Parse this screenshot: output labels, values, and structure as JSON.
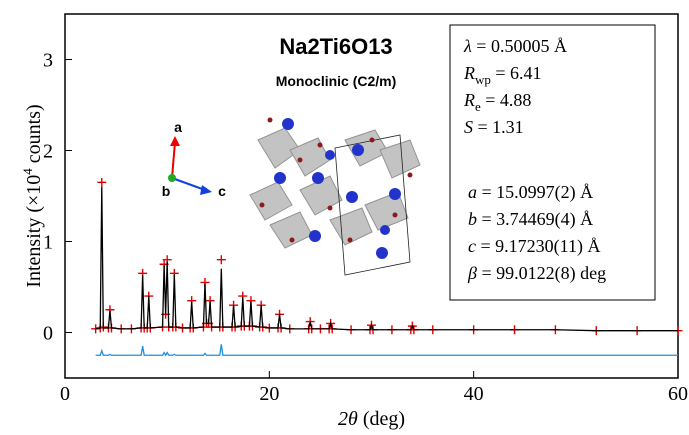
{
  "chart_data": {
    "type": "rietveld",
    "title": "Na2Ti6O13",
    "subtitle": "Monoclinic (C2/m)",
    "x_label": {
      "symbol": "2θ",
      "text": " (deg)"
    },
    "y_label": {
      "text": "Intensity (×10",
      "sup": "4",
      "end": " counts)"
    },
    "crystal_axes": [
      "a",
      "b",
      "c"
    ],
    "annotations": [
      {
        "symbol": "λ",
        "text": " = 0.50005 Å"
      },
      {
        "symbol": "R",
        "sub": "wp",
        "text": " = 6.41"
      },
      {
        "symbol": "R",
        "sub": "e",
        "text": " = 4.88"
      },
      {
        "symbol": "S",
        "text": " = 1.31"
      },
      {
        "symbol": "a",
        "text": " = 15.0997(2) Å"
      },
      {
        "symbol": "b",
        "text": " = 3.74469(4) Å"
      },
      {
        "symbol": "c",
        "text": " = 9.17230(11) Å"
      },
      {
        "symbol": "β",
        "text": " = 99.0122(8) deg"
      }
    ],
    "xlim": [
      0,
      60
    ],
    "ylim": [
      -0.5,
      3.5
    ],
    "xticks": [
      0,
      20,
      40,
      60
    ],
    "yticks": [
      0,
      1,
      2,
      3
    ],
    "x": [
      3.0,
      3.45,
      3.6,
      3.75,
      4.25,
      4.4,
      4.55,
      5.5,
      6.5,
      7.45,
      7.6,
      7.75,
      8.05,
      8.2,
      8.35,
      9.55,
      9.7,
      9.85,
      10.0,
      10.15,
      10.55,
      10.7,
      10.85,
      11.5,
      12.25,
      12.4,
      12.55,
      13.55,
      13.7,
      13.85,
      14.05,
      14.2,
      14.35,
      15.15,
      15.3,
      15.45,
      16.35,
      16.5,
      16.65,
      17.25,
      17.4,
      17.55,
      18.05,
      18.2,
      18.35,
      19.05,
      19.2,
      19.35,
      20.0,
      20.85,
      21.0,
      21.15,
      22,
      23.85,
      24,
      24.15,
      25,
      25.85,
      26,
      26.15,
      28,
      29.85,
      30,
      30.15,
      32,
      33.85,
      34,
      34.15,
      36,
      40,
      44,
      48,
      52,
      56,
      60
    ],
    "series": [
      {
        "color": "#e00000",
        "style": "cross",
        "values": [
          0.04,
          0.05,
          1.65,
          0.06,
          0.05,
          0.25,
          0.05,
          0.04,
          0.04,
          0.05,
          0.65,
          0.05,
          0.05,
          0.4,
          0.05,
          0.06,
          0.75,
          0.2,
          0.8,
          0.06,
          0.06,
          0.65,
          0.06,
          0.05,
          0.05,
          0.35,
          0.05,
          0.06,
          0.55,
          0.1,
          0.1,
          0.35,
          0.06,
          0.06,
          0.8,
          0.06,
          0.06,
          0.3,
          0.06,
          0.07,
          0.4,
          0.07,
          0.07,
          0.35,
          0.07,
          0.06,
          0.3,
          0.06,
          0.05,
          0.05,
          0.2,
          0.05,
          0.04,
          0.04,
          0.12,
          0.04,
          0.04,
          0.04,
          0.1,
          0.04,
          0.03,
          0.03,
          0.08,
          0.03,
          0.03,
          0.03,
          0.07,
          0.03,
          0.03,
          0.03,
          0.03,
          0.03,
          0.02,
          0.02,
          0.02
        ]
      },
      {
        "color": "#000000",
        "style": "line",
        "values": [
          0.04,
          0.05,
          1.6,
          0.05,
          0.05,
          0.24,
          0.05,
          0.04,
          0.04,
          0.05,
          0.63,
          0.05,
          0.05,
          0.4,
          0.05,
          0.06,
          0.74,
          0.2,
          0.78,
          0.06,
          0.06,
          0.64,
          0.06,
          0.05,
          0.05,
          0.34,
          0.05,
          0.06,
          0.54,
          0.1,
          0.1,
          0.34,
          0.06,
          0.06,
          0.7,
          0.06,
          0.06,
          0.3,
          0.06,
          0.07,
          0.39,
          0.07,
          0.07,
          0.34,
          0.07,
          0.06,
          0.3,
          0.06,
          0.05,
          0.05,
          0.2,
          0.05,
          0.04,
          0.04,
          0.12,
          0.04,
          0.04,
          0.04,
          0.1,
          0.04,
          0.03,
          0.03,
          0.08,
          0.03,
          0.03,
          0.03,
          0.07,
          0.03,
          0.03,
          0.03,
          0.03,
          0.03,
          0.02,
          0.02,
          0.02
        ]
      },
      {
        "color": "#1f8fe0",
        "style": "line",
        "values": [
          -0.25,
          -0.25,
          -0.2,
          -0.25,
          -0.25,
          -0.24,
          -0.25,
          -0.25,
          -0.25,
          -0.25,
          -0.15,
          -0.25,
          -0.25,
          -0.25,
          -0.25,
          -0.25,
          -0.22,
          -0.25,
          -0.22,
          -0.25,
          -0.25,
          -0.24,
          -0.25,
          -0.25,
          -0.25,
          -0.25,
          -0.25,
          -0.25,
          -0.23,
          -0.25,
          -0.25,
          -0.25,
          -0.25,
          -0.25,
          -0.13,
          -0.25,
          -0.25,
          -0.25,
          -0.25,
          -0.25,
          -0.25,
          -0.25,
          -0.25,
          -0.25,
          -0.25,
          -0.25,
          -0.25,
          -0.25,
          -0.25,
          -0.25,
          -0.25,
          -0.25,
          -0.25,
          -0.25,
          -0.25,
          -0.25,
          -0.25,
          -0.25,
          -0.25,
          -0.25,
          -0.25,
          -0.25,
          -0.25,
          -0.25,
          -0.25,
          -0.25,
          -0.25,
          -0.25,
          -0.25,
          -0.25,
          -0.25,
          -0.25,
          -0.25,
          -0.25,
          -0.25
        ]
      }
    ]
  }
}
